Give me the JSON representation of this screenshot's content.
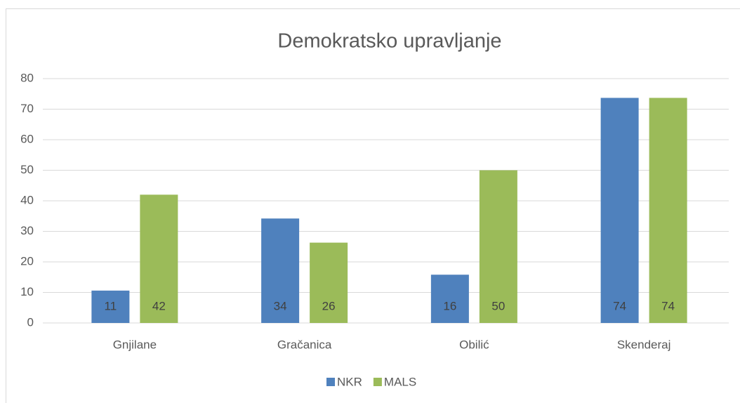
{
  "chart_data": {
    "type": "bar",
    "title": "Demokratsko upravljanje",
    "categories": [
      "Gnjilane",
      "Gračanica",
      "Obilić",
      "Skenderaj"
    ],
    "series": [
      {
        "name": "NKR",
        "color": "#4f81bd",
        "values": [
          10.6,
          34.2,
          15.8,
          73.7
        ],
        "value_labels": [
          "11",
          "34",
          "16",
          "74"
        ]
      },
      {
        "name": "MALS",
        "color": "#9bbb59",
        "values": [
          42,
          26.3,
          50,
          73.7
        ],
        "value_labels": [
          "42",
          "26",
          "50",
          "74"
        ]
      }
    ],
    "ylim": [
      0,
      80
    ],
    "yticks": [
      0,
      10,
      20,
      30,
      40,
      50,
      60,
      70,
      80
    ],
    "grid": true,
    "legend": "bottom"
  }
}
